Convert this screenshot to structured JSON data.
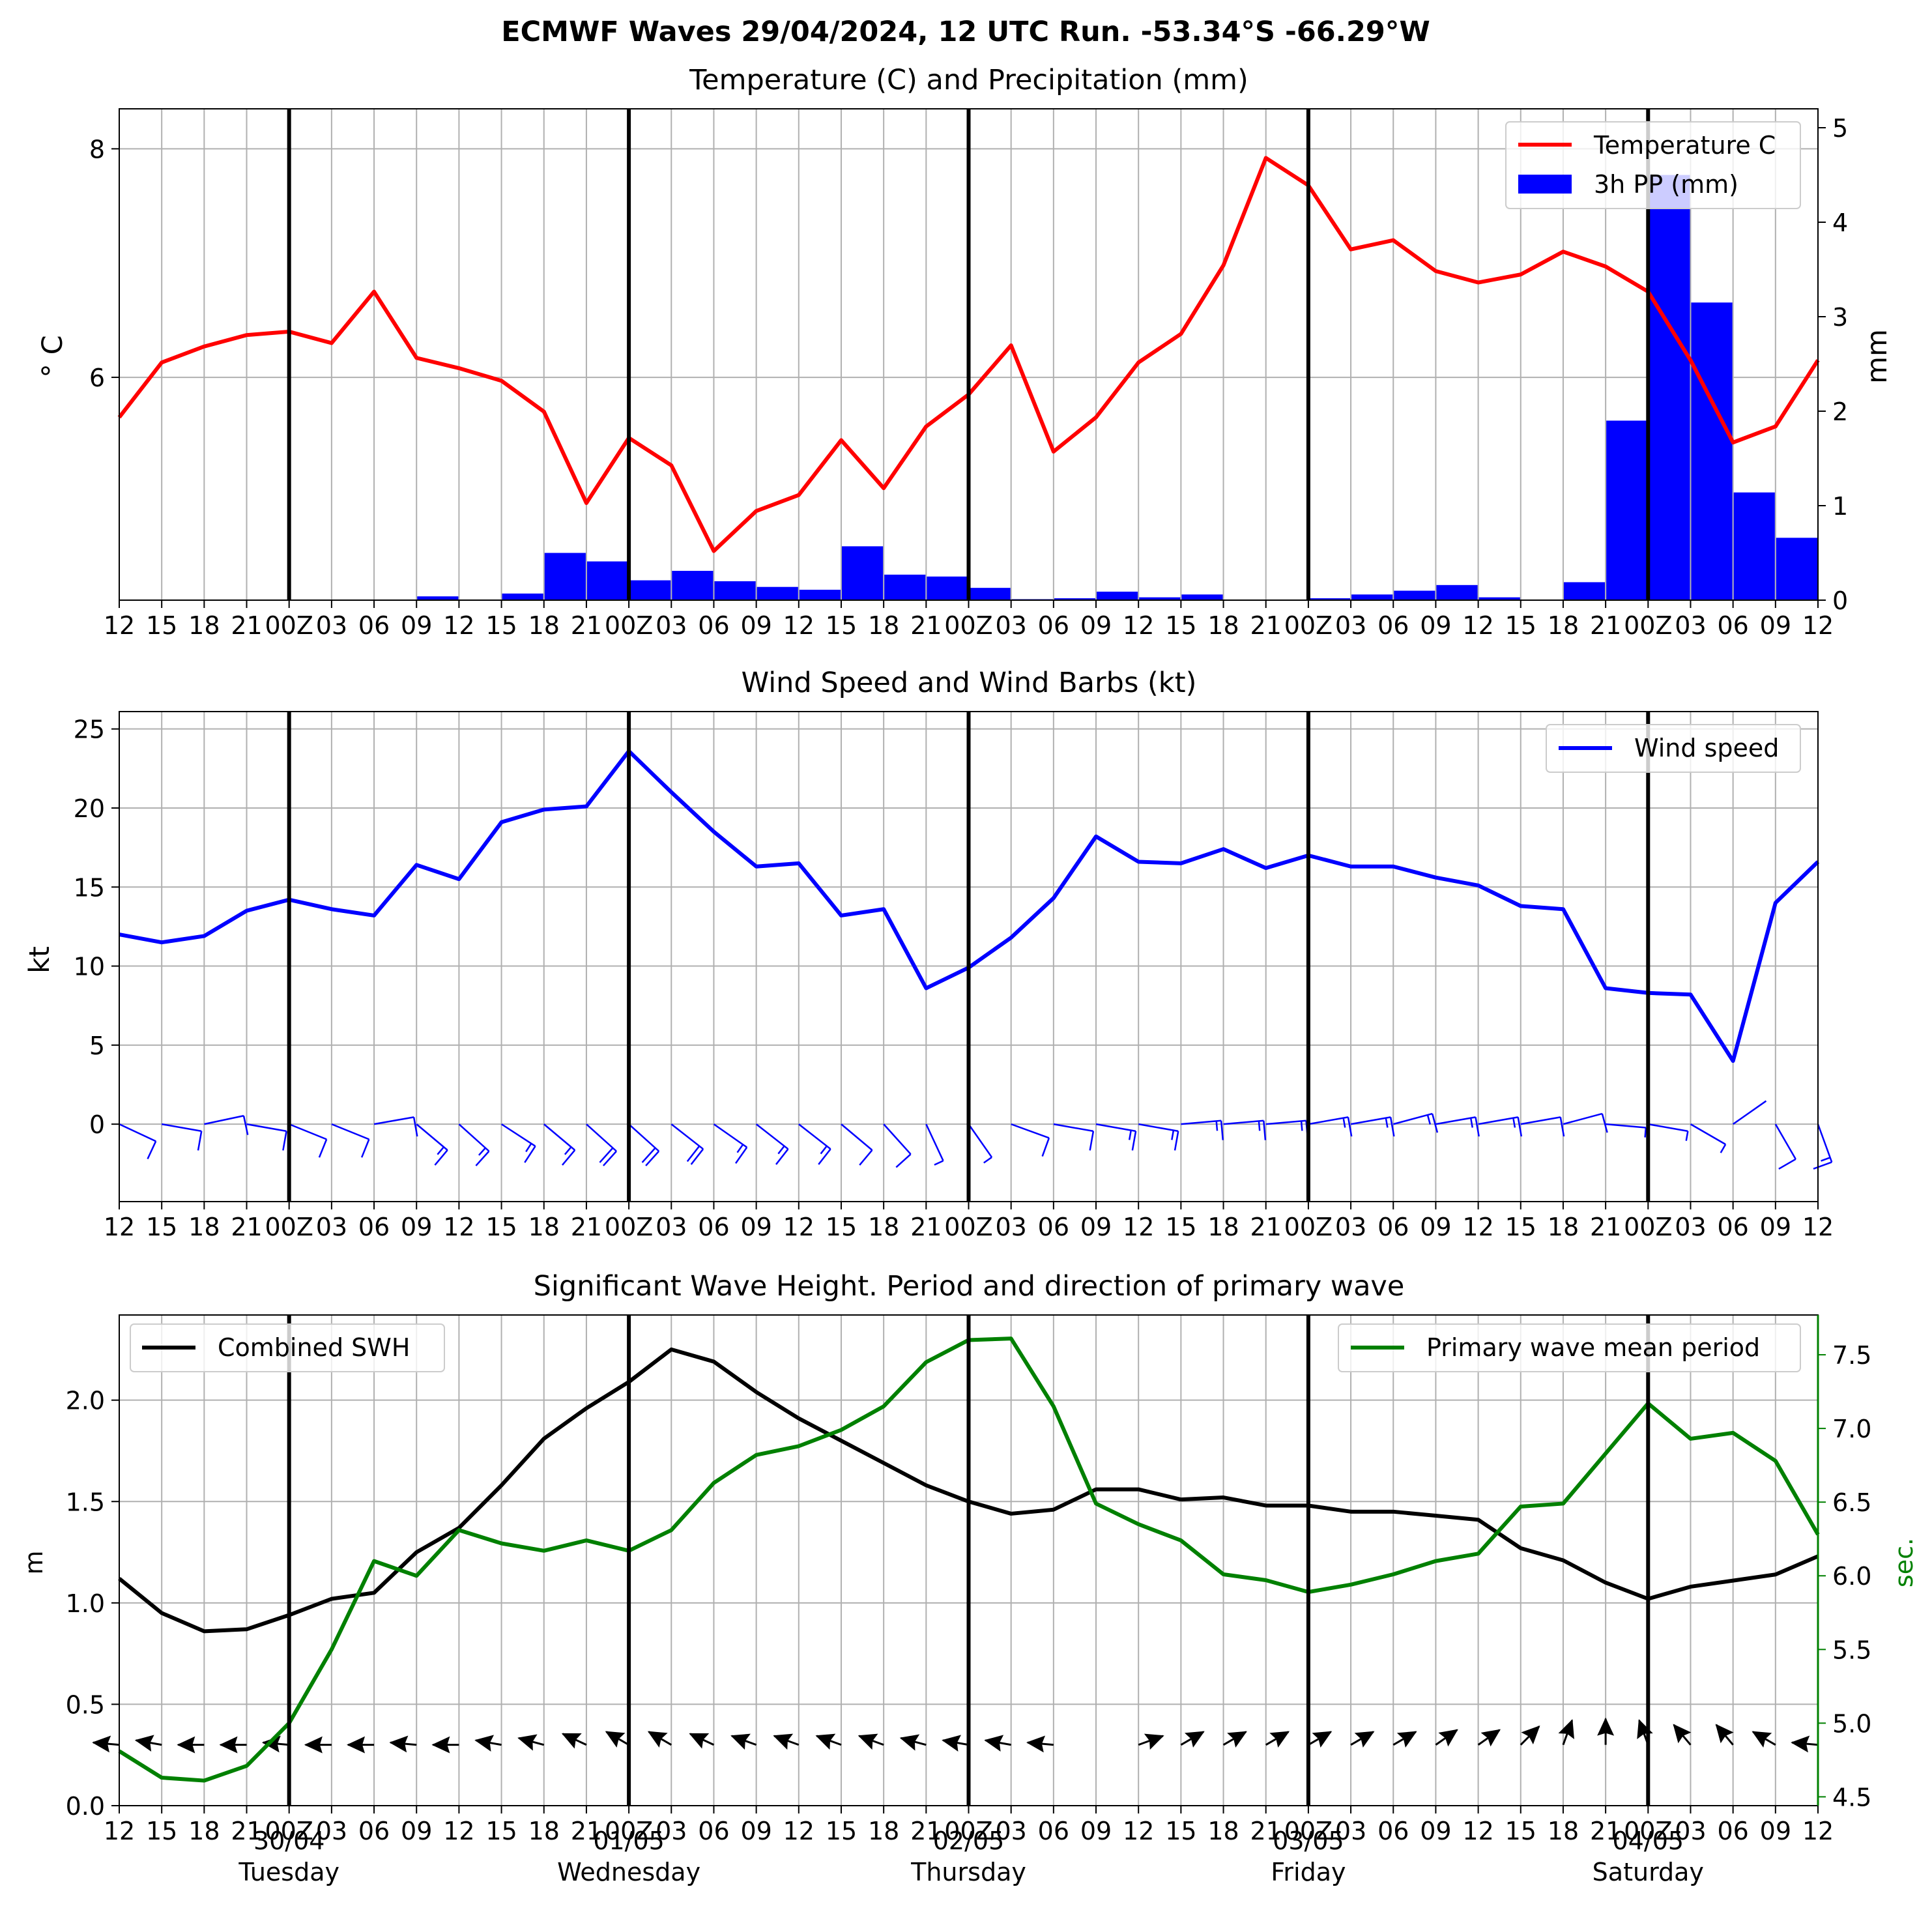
{
  "figure": {
    "title": "ECMWF Waves 29/04/2024, 12 UTC Run. -53.34°S -66.29°W"
  },
  "x_tick_labels": [
    "12",
    "15",
    "18",
    "21",
    "00Z",
    "03",
    "06",
    "09",
    "12",
    "15",
    "18",
    "21",
    "00Z",
    "03",
    "06",
    "09",
    "12",
    "15",
    "18",
    "21",
    "00Z",
    "03",
    "06",
    "09",
    "12",
    "15",
    "18",
    "21",
    "00Z",
    "03",
    "06",
    "09",
    "12",
    "15",
    "18",
    "21",
    "00Z",
    "03",
    "06",
    "09",
    "12"
  ],
  "day_labels": [
    {
      "date": "30/04",
      "day": "Tuesday"
    },
    {
      "date": "01/05",
      "day": "Wednesday"
    },
    {
      "date": "02/05",
      "day": "Thursday"
    },
    {
      "date": "03/05",
      "day": "Friday"
    },
    {
      "date": "04/05",
      "day": "Saturday"
    }
  ],
  "colors": {
    "temperature": "#ff0000",
    "precipitation": "#0000ff",
    "wind": "#0000ff",
    "swh": "#000000",
    "period": "#008000",
    "grid": "#b0b0b0"
  },
  "chart_data": [
    {
      "type": "line",
      "title": "Temperature (C) and Precipitation (mm)",
      "ylabel": "$^\\circ$C",
      "ylabel_display": "° C",
      "y2label": "mm",
      "ylim": [
        4.05,
        8.35
      ],
      "yticks": [
        6,
        8
      ],
      "y2lim": [
        0,
        5.2
      ],
      "y2ticks": [
        0,
        1,
        2,
        3,
        4,
        5
      ],
      "legend_position": "top-right",
      "grid": true,
      "series": [
        {
          "name": "Temperature C",
          "type": "line",
          "values": [
            5.65,
            6.13,
            6.27,
            6.37,
            6.4,
            6.3,
            6.75,
            6.17,
            6.08,
            5.97,
            5.7,
            4.9,
            5.47,
            5.23,
            4.48,
            4.83,
            4.97,
            5.45,
            5.03,
            5.57,
            5.85,
            6.28,
            5.35,
            5.65,
            6.13,
            6.38,
            6.98,
            7.92,
            7.68,
            7.12,
            7.2,
            6.93,
            6.83,
            6.9,
            7.1,
            6.97,
            6.75,
            6.15,
            5.43,
            5.57,
            6.15
          ]
        },
        {
          "name": "3h PP (mm)",
          "type": "bar",
          "axis": "right",
          "values": [
            0,
            0,
            0,
            0,
            0,
            0,
            0,
            0.04,
            0,
            0.07,
            0.5,
            0.41,
            0.21,
            0.31,
            0.2,
            0.14,
            0.11,
            0.57,
            0.27,
            0.25,
            0.13,
            0.01,
            0.02,
            0.09,
            0.03,
            0.06,
            0,
            0,
            0.02,
            0.06,
            0.1,
            0.16,
            0.03,
            0,
            0.19,
            1.9,
            4.5,
            3.15,
            1.14,
            0.66
          ]
        }
      ]
    },
    {
      "type": "line",
      "title": "Wind Speed and Wind Barbs (kt)",
      "ylabel": "kt",
      "ylim": [
        -4.9,
        26.1
      ],
      "yticks": [
        0,
        5,
        10,
        15,
        20,
        25
      ],
      "legend_position": "top-right",
      "grid": true,
      "series": [
        {
          "name": "Wind speed",
          "type": "line",
          "values": [
            12,
            11.5,
            11.9,
            13.5,
            14.2,
            13.6,
            13.2,
            16.4,
            15.5,
            19.1,
            19.9,
            20.1,
            23.6,
            21,
            18.5,
            16.3,
            16.5,
            13.2,
            13.6,
            8.6,
            9.9,
            11.8,
            14.3,
            18.2,
            16.6,
            16.5,
            17.4,
            16.2,
            17,
            16.3,
            16.3,
            15.6,
            15.1,
            13.8,
            13.6,
            8.6,
            8.3,
            8.2,
            4,
            14,
            16.6
          ]
        }
      ],
      "wind_barbs": {
        "y": 0,
        "note_unit": "kt",
        "directions_to_deg": [
          -25,
          -10,
          12,
          -10,
          -22,
          -22,
          10,
          -40,
          -42,
          -33,
          -40,
          -42,
          -42,
          -38,
          -35,
          -38,
          -38,
          -40,
          -48,
          -65,
          -55,
          -20,
          -10,
          -10,
          -10,
          5,
          5,
          5,
          10,
          10,
          15,
          10,
          10,
          10,
          15,
          -5,
          -10,
          -30,
          35,
          -60,
          -70
        ],
        "speeds": [
          12,
          11.5,
          11.9,
          13.5,
          14.2,
          13.6,
          13.2,
          16.4,
          15.5,
          19.1,
          19.9,
          20.1,
          23.6,
          21,
          18.5,
          16.3,
          16.5,
          13.2,
          13.6,
          8.6,
          9.9,
          11.8,
          14.3,
          18.2,
          16.6,
          16.5,
          17.4,
          16.2,
          17,
          16.3,
          16.3,
          15.6,
          15.1,
          13.8,
          13.6,
          8.6,
          8.3,
          8.2,
          4,
          14,
          16.6
        ]
      }
    },
    {
      "type": "line",
      "title": "Significant Wave Height. Period and direction of primary wave",
      "ylabel": "m",
      "y2label": "sec.",
      "ylim": [
        0,
        2.42
      ],
      "yticks": [
        0.0,
        0.5,
        1.0,
        1.5,
        2.0
      ],
      "y2lim": [
        4.44,
        7.77
      ],
      "y2ticks": [
        4.5,
        5.0,
        5.5,
        6.0,
        6.5,
        7.0,
        7.5
      ],
      "grid": true,
      "legend_swh_position": "top-left",
      "legend_period_position": "top-right",
      "series": [
        {
          "name": "Combined SWH",
          "type": "line",
          "axis": "left",
          "values": [
            1.12,
            0.95,
            0.86,
            0.87,
            0.94,
            1.02,
            1.05,
            1.25,
            1.37,
            1.58,
            1.81,
            1.96,
            2.09,
            2.25,
            2.19,
            2.04,
            1.91,
            1.8,
            1.69,
            1.58,
            1.5,
            1.44,
            1.46,
            1.56,
            1.56,
            1.51,
            1.52,
            1.48,
            1.48,
            1.45,
            1.45,
            1.43,
            1.41,
            1.27,
            1.21,
            1.1,
            1.02,
            1.08,
            1.11,
            1.14,
            1.23
          ]
        },
        {
          "name": "Primary wave mean period",
          "type": "line",
          "axis": "right",
          "values": [
            4.81,
            4.63,
            4.61,
            4.71,
            5.0,
            5.5,
            6.1,
            6.0,
            6.31,
            6.22,
            6.17,
            6.24,
            6.17,
            6.31,
            6.63,
            6.82,
            6.88,
            6.99,
            7.15,
            7.45,
            7.6,
            7.61,
            7.15,
            6.49,
            6.35,
            6.24,
            6.01,
            5.97,
            5.89,
            5.94,
            6.01,
            6.1,
            6.15,
            6.47,
            6.49,
            6.83,
            7.17,
            6.93,
            6.97,
            6.78,
            6.28
          ]
        }
      ],
      "wave_direction_arrows": {
        "y": 0.3,
        "angles_deg": [
          175,
          170,
          180,
          180,
          175,
          180,
          180,
          175,
          180,
          170,
          165,
          155,
          150,
          150,
          155,
          160,
          160,
          160,
          160,
          165,
          170,
          170,
          175,
          null,
          20,
          30,
          30,
          30,
          30,
          30,
          30,
          35,
          35,
          45,
          70,
          90,
          110,
          130,
          130,
          150,
          175
        ]
      }
    }
  ]
}
